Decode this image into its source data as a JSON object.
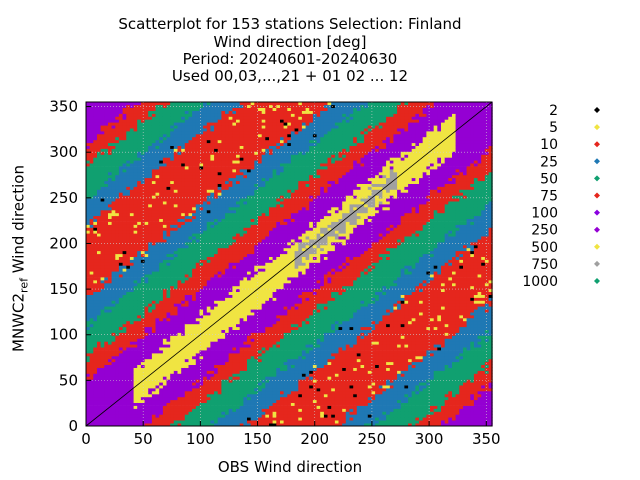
{
  "chart_data": {
    "type": "scatter",
    "title_lines": [
      "Scatterplot for  153 stations Selection: Finland",
      "Wind direction [deg]",
      "Period: 20240601-20240630",
      "Used 00,03,...,21 + 01 02 ... 12"
    ],
    "xlabel": "OBS Wind direction",
    "ylabel_main": "MNWC2",
    "ylabel_sub": "ref",
    "ylabel_rest": " Wind direction",
    "xlim": [
      0,
      355
    ],
    "ylim": [
      0,
      355
    ],
    "x_ticks": [
      "0",
      "50",
      "100",
      "150",
      "200",
      "250",
      "300",
      "350"
    ],
    "y_ticks": [
      "0",
      "50",
      "100",
      "150",
      "200",
      "250",
      "300",
      "350"
    ],
    "grid": true,
    "diagonal": true,
    "legend_position": "right",
    "legend": [
      {
        "label": "2",
        "color": "#000000"
      },
      {
        "label": "5",
        "color": "#f0e442"
      },
      {
        "label": "10",
        "color": "#e5261d"
      },
      {
        "label": "25",
        "color": "#1f78b4"
      },
      {
        "label": "50",
        "color": "#10a070"
      },
      {
        "label": "75",
        "color": "#e5261d"
      },
      {
        "label": "100",
        "color": "#8a00e0"
      },
      {
        "label": "250",
        "color": "#9400d3"
      },
      {
        "label": "500",
        "color": "#f0e442"
      },
      {
        "label": "750",
        "color": "#a0a0a0"
      },
      {
        "label": "1000",
        "color": "#10a070"
      }
    ],
    "density_bands": [
      {
        "max_dist": 8,
        "color": "#a0a0a0",
        "xrange": [
          180,
          270
        ]
      },
      {
        "max_dist": 20,
        "color": "#f0e442",
        "xrange": [
          40,
          320
        ]
      },
      {
        "max_dist": 50,
        "color": "#9400d3"
      },
      {
        "max_dist": 75,
        "color": "#e5261d"
      },
      {
        "max_dist": 110,
        "color": "#10a070"
      },
      {
        "max_dist": 140,
        "color": "#1f78b4"
      },
      {
        "max_dist": 999,
        "color": "#e5261d"
      }
    ]
  }
}
